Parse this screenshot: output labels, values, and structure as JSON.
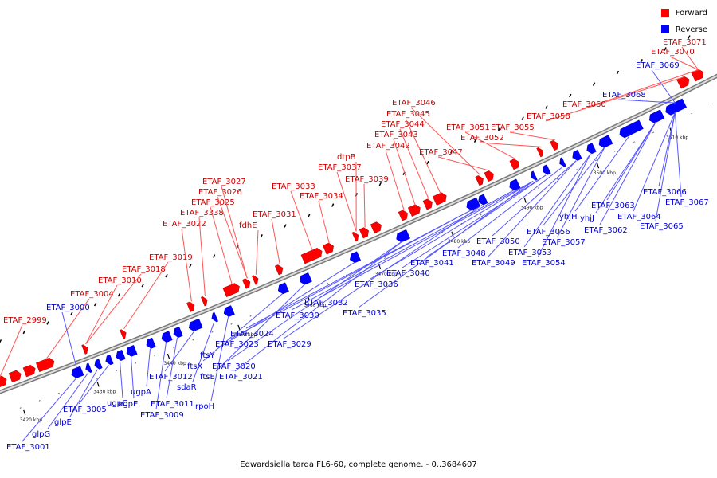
{
  "legend": {
    "forward_label": "Forward",
    "reverse_label": "Reverse",
    "forward_color": "#ff0000",
    "reverse_color": "#0000ff"
  },
  "caption": "Edwardsiella tarda FL6-60, complete genome. - 0..3684607",
  "axis": {
    "unit": "kbp",
    "ticks": [
      "3420 kbp",
      "3430 kbp",
      "3440 kbp",
      "3450 kbp",
      "3460 kbp",
      "3470 kbp",
      "3480 kbp",
      "3490 kbp",
      "3500 kbp",
      "3510 kbp"
    ]
  },
  "genes": {
    "forward": [
      "ETAF_2999",
      "ETAF_3004",
      "ETAF_3010",
      "ETAF_3018",
      "ETAF_3019",
      "ETAF_3022",
      "ETAF_3338",
      "ETAF_3025",
      "ETAF_3026",
      "ETAF_3027",
      "fdhE",
      "ETAF_3031",
      "ETAF_3033",
      "ETAF_3034",
      "dtpB",
      "ETAF_3037",
      "ETAF_3039",
      "ETAF_3042",
      "ETAF_3043",
      "ETAF_3044",
      "ETAF_3045",
      "ETAF_3046",
      "ETAF_3047",
      "ETAF_3051",
      "ETAF_3052",
      "ETAF_3055",
      "ETAF_3058",
      "ETAF_3060",
      "ETAF_3070",
      "ETAF_3071"
    ],
    "reverse": [
      "ETAF_3000",
      "ETAF_3001",
      "glpG",
      "glpE",
      "ETAF_3005",
      "ugpC",
      "ugpE",
      "ugpA",
      "ETAF_3009",
      "ETAF_3011",
      "ETAF_3012",
      "sdaR",
      "rpoH",
      "ftsX",
      "ftsE",
      "ftsY",
      "ETAF_3020",
      "ETAF_3021",
      "ETAF_3023",
      "ETAF_3024",
      "ETAF_3029",
      "ETAF_3030",
      "ETAF_3032",
      "ETAF_3035",
      "ETAF_3036",
      "ETAF_3040",
      "ETAF_3041",
      "ETAF_3048",
      "ETAF_3049",
      "ETAF_3050",
      "ETAF_3053",
      "ETAF_3054",
      "ETAF_3056",
      "ETAF_3057",
      "yhjH",
      "yhjJ",
      "ETAF_3062",
      "ETAF_3063",
      "ETAF_3064",
      "ETAF_3065",
      "ETAF_3066",
      "ETAF_3067",
      "ETAF_3068",
      "ETAF_3069"
    ]
  }
}
